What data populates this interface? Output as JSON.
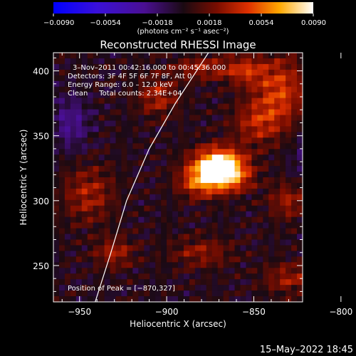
{
  "chart_data": {
    "type": "heatmap",
    "title": "Reconstructed RHESSI Image",
    "xlabel": "Heliocentric X (arcsec)",
    "ylabel": "Heliocentric Y (arcsec)",
    "xlim": [
      -965,
      -822
    ],
    "ylim": [
      222,
      414
    ],
    "x_ticks": [
      -950,
      -900,
      -850,
      -800
    ],
    "y_ticks": [
      250,
      300,
      350,
      400
    ],
    "x_tick_labels": [
      "−950",
      "−900",
      "−850",
      "−800"
    ],
    "y_tick_labels": [
      "250",
      "300",
      "350",
      "400"
    ],
    "colorbar": {
      "min": -0.009,
      "max": 0.009,
      "ticks": [
        -0.009,
        -0.0054,
        -0.0018,
        0.0018,
        0.0054,
        0.009
      ],
      "tick_labels": [
        "−0.0090",
        "−0.0054",
        "−0.0018",
        "0.0018",
        "0.0054",
        "0.0090"
      ],
      "unit_label": "(photons cm⁻² s⁻¹ asec⁻²)"
    },
    "annotations": [
      "3–Nov–2011 00:42:16.000 to 00:45:36.000",
      "Detectors: 3F 4F 5F 6F 7F 8F, Att 0",
      "Energy Range: 6.0 – 12.0 keV",
      "Clean     Total counts: 2.34E+04"
    ],
    "peak_label": "Position of Peak = [−870,327]",
    "peak": {
      "x": -870,
      "y": 327,
      "value": 0.009
    },
    "limb_curve": [
      [
        -941,
        222
      ],
      [
        -932,
        260
      ],
      [
        -923,
        300
      ],
      [
        -910,
        340
      ],
      [
        -895,
        375
      ],
      [
        -876,
        414
      ]
    ],
    "sources": [
      {
        "x": -870,
        "y": 327,
        "sx": 10,
        "sy": 9,
        "amp": 0.0105
      },
      {
        "x": -880,
        "y": 314,
        "sx": 9,
        "sy": 8,
        "amp": 0.005
      },
      {
        "x": -862,
        "y": 316,
        "sx": 8,
        "sy": 7,
        "amp": 0.0035
      },
      {
        "x": -835,
        "y": 385,
        "sx": 10,
        "sy": 18,
        "amp": 0.0042
      },
      {
        "x": -848,
        "y": 360,
        "sx": 10,
        "sy": 12,
        "amp": 0.0032
      },
      {
        "x": -855,
        "y": 400,
        "sx": 8,
        "sy": 8,
        "amp": 0.0035
      },
      {
        "x": -905,
        "y": 380,
        "sx": 8,
        "sy": 10,
        "amp": 0.0032
      },
      {
        "x": -945,
        "y": 305,
        "sx": 10,
        "sy": 15,
        "amp": 0.003
      },
      {
        "x": -930,
        "y": 260,
        "sx": 8,
        "sy": 8,
        "amp": 0.003
      },
      {
        "x": -880,
        "y": 260,
        "sx": 12,
        "sy": 8,
        "amp": 0.0025
      },
      {
        "x": -830,
        "y": 300,
        "sx": 8,
        "sy": 10,
        "amp": 0.0028
      },
      {
        "x": -830,
        "y": 240,
        "sx": 10,
        "sy": 8,
        "amp": 0.0028
      },
      {
        "x": -880,
        "y": 402,
        "sx": 12,
        "sy": 6,
        "amp": 0.003
      },
      {
        "x": -955,
        "y": 360,
        "sx": 8,
        "sy": 15,
        "amp": -0.0025
      },
      {
        "x": -815,
        "y": 330,
        "sx": 8,
        "sy": 15,
        "amp": -0.0025
      }
    ]
  },
  "footer": {
    "timestamp": "15–May–2022 18:45"
  }
}
